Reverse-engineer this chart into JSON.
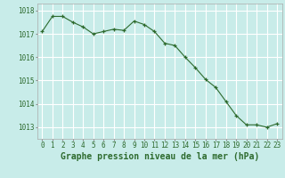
{
  "hours": [
    0,
    1,
    2,
    3,
    4,
    5,
    6,
    7,
    8,
    9,
    10,
    11,
    12,
    13,
    14,
    15,
    16,
    17,
    18,
    19,
    20,
    21,
    22,
    23
  ],
  "pressure": [
    1017.1,
    1017.75,
    1017.75,
    1017.5,
    1017.3,
    1017.0,
    1017.1,
    1017.2,
    1017.15,
    1017.55,
    1017.4,
    1017.1,
    1016.6,
    1016.5,
    1016.0,
    1015.55,
    1015.05,
    1014.7,
    1014.1,
    1013.5,
    1013.1,
    1013.1,
    1013.0,
    1013.15
  ],
  "line_color": "#2d6a2d",
  "marker_color": "#2d6a2d",
  "bg_color": "#c8ece9",
  "grid_color": "#ffffff",
  "label_color": "#2d6a2d",
  "xlabel": "Graphe pression niveau de la mer (hPa)",
  "ylim": [
    1012.5,
    1018.3
  ],
  "yticks": [
    1013,
    1014,
    1015,
    1016,
    1017,
    1018
  ],
  "xticks": [
    0,
    1,
    2,
    3,
    4,
    5,
    6,
    7,
    8,
    9,
    10,
    11,
    12,
    13,
    14,
    15,
    16,
    17,
    18,
    19,
    20,
    21,
    22,
    23
  ],
  "tick_fontsize": 5.5,
  "xlabel_fontsize": 7.0,
  "marker_size": 3.0,
  "line_width": 0.8
}
